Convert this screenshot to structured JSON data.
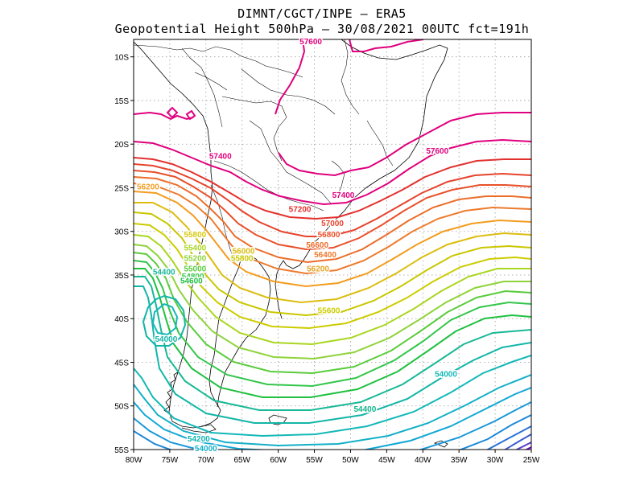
{
  "header": {
    "line1": "DIMNT/CGCT/INPE —  ERA5",
    "line2": "Geopotential Height 500hPa —  30/08/2021 00UTC fct=191h"
  },
  "axes": {
    "lon_ticks": [
      "80W",
      "75W",
      "70W",
      "65W",
      "60W",
      "55W",
      "50W",
      "45W",
      "40W",
      "35W",
      "30W",
      "25W"
    ],
    "lat_ticks": [
      "10S",
      "15S",
      "20S",
      "25S",
      "30S",
      "35S",
      "40S",
      "45S",
      "50S",
      "55S"
    ]
  },
  "map_data": {
    "type": "contour",
    "variable": "geopotential height 500hPa",
    "extent": {
      "lon": [
        -80,
        -25
      ],
      "lat": [
        -55,
        -8
      ]
    },
    "grid": "dotted",
    "labels": [
      {
        "text": "57600",
        "lon": -55.5,
        "lat": -8.2,
        "color": "#e0007e"
      },
      {
        "text": "57400",
        "lon": -68.0,
        "lat": -21.3,
        "color": "#e0007e"
      },
      {
        "text": "57600",
        "lon": -38.0,
        "lat": -20.7,
        "color": "#e0007e"
      },
      {
        "text": "57400",
        "lon": -51.0,
        "lat": -25.8,
        "color": "#e0007e"
      },
      {
        "text": "57200",
        "lon": -57.0,
        "lat": -27.4,
        "color": "#e3312e"
      },
      {
        "text": "57000",
        "lon": -52.5,
        "lat": -29.0,
        "color": "#e6432d"
      },
      {
        "text": "56800",
        "lon": -53.0,
        "lat": -30.3,
        "color": "#e8502a"
      },
      {
        "text": "56600",
        "lon": -54.6,
        "lat": -31.5,
        "color": "#eb6e2a"
      },
      {
        "text": "56400",
        "lon": -53.5,
        "lat": -32.6,
        "color": "#ee7a2c"
      },
      {
        "text": "56200",
        "lon": -78.0,
        "lat": -24.8,
        "color": "#f39c1f"
      },
      {
        "text": "56200",
        "lon": -54.5,
        "lat": -34.2,
        "color": "#e4a21f"
      },
      {
        "text": "56000",
        "lon": -64.8,
        "lat": -32.2,
        "color": "#dcbd10"
      },
      {
        "text": "55800",
        "lon": -71.5,
        "lat": -30.3,
        "color": "#d7c90f"
      },
      {
        "text": "55800",
        "lon": -65.0,
        "lat": -33.0,
        "color": "#c9c700"
      },
      {
        "text": "55600",
        "lon": -53.0,
        "lat": -39.0,
        "color": "#cccc00"
      },
      {
        "text": "55400",
        "lon": -71.5,
        "lat": -31.8,
        "color": "#a9d61f"
      },
      {
        "text": "55200",
        "lon": -71.5,
        "lat": -33.0,
        "color": "#8fd33a"
      },
      {
        "text": "55000",
        "lon": -71.5,
        "lat": -34.2,
        "color": "#5acc3d"
      },
      {
        "text": "54800",
        "lon": -71.8,
        "lat": -35.1,
        "color": "#33c64a"
      },
      {
        "text": "54600",
        "lon": -72.0,
        "lat": -35.6,
        "color": "#20c040"
      },
      {
        "text": "54400",
        "lon": -75.8,
        "lat": -34.6,
        "color": "#18b896"
      },
      {
        "text": "54000",
        "lon": -75.5,
        "lat": -42.3,
        "color": "#12b6a8"
      },
      {
        "text": "54000",
        "lon": -36.8,
        "lat": -46.3,
        "color": "#14b8b8"
      },
      {
        "text": "54400",
        "lon": -48.0,
        "lat": -50.3,
        "color": "#10b48a"
      },
      {
        "text": "54200",
        "lon": -71.0,
        "lat": -53.7,
        "color": "#12b4b0"
      },
      {
        "text": "54000",
        "lon": -70.0,
        "lat": -54.8,
        "color": "#14b0c8"
      }
    ],
    "colors": {
      "low": "#7a00c8",
      "mid": "#00c800",
      "high": "#e0007e"
    }
  }
}
